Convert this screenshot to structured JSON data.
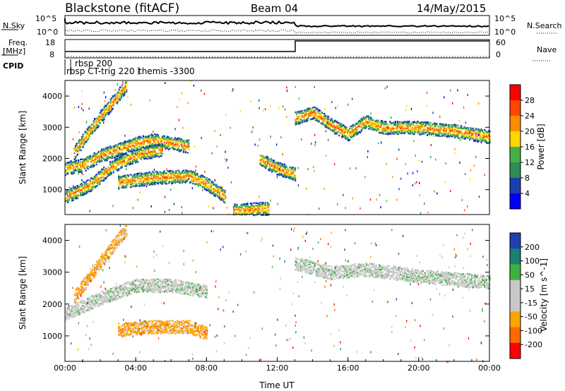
{
  "header": {
    "station": "Blackstone (fitACF)",
    "beam": "Beam 04",
    "date": "14/May/2015"
  },
  "strip": {
    "nsky_label": "N.Sky",
    "nsky_ticks": [
      "10^5",
      "10^0"
    ],
    "nsearch_label": "N.Search",
    "nsearch_ticks": [
      "10^5",
      "10^0"
    ],
    "freq_label_1": "Freq.",
    "freq_label_2": "[MHz]",
    "freq_ticks": [
      "18",
      "8"
    ],
    "nave_label": "Nave",
    "nave_ticks": [
      "60",
      "0"
    ],
    "cpid_label": "CPID",
    "cpid_entries": [
      "rbsp 200",
      "rbsp CT-trig 220",
      "themis -3300"
    ]
  },
  "colors": {
    "power": [
      "#0000ff",
      "#1a3fb0",
      "#2e8b57",
      "#44b045",
      "#ffd700",
      "#ff8c00",
      "#ff4500",
      "#ff0000"
    ],
    "velocity": [
      "#2040b0",
      "#1a8070",
      "#40b040",
      "#c8c8c8",
      "#c8c8c8",
      "#ffa500",
      "#ff6a00",
      "#ff0000"
    ]
  },
  "chart_data": [
    {
      "type": "heatmap",
      "panel": "power",
      "ylabel": "Slant Range [km]",
      "yticks": [
        "1000",
        "2000",
        "3000",
        "4000"
      ],
      "ylim": [
        200,
        4500
      ],
      "xlim": [
        0,
        24
      ],
      "colorbar_label": "Power [dB]",
      "colorbar_ticks": [
        "4",
        "8",
        "12",
        "16",
        "20",
        "24",
        "28"
      ],
      "features": [
        {
          "t": [
            0.0,
            1.0,
            2.0,
            3.0,
            4.0,
            5.0,
            6.0,
            7.0
          ],
          "r": [
            1700,
            1800,
            2100,
            2300,
            2500,
            2600,
            2500,
            2400
          ]
        },
        {
          "t": [
            0.0,
            0.5,
            1.5,
            2.5,
            3.5,
            4.5,
            5.5
          ],
          "r": [
            800,
            900,
            1200,
            1700,
            2000,
            2200,
            2300
          ]
        },
        {
          "t": [
            0.5,
            1.5,
            2.5,
            3.5
          ],
          "r": [
            2200,
            3000,
            3700,
            4400
          ]
        },
        {
          "t": [
            3.0,
            5.0,
            7.0,
            8.0,
            9.0
          ],
          "r": [
            1250,
            1400,
            1450,
            1200,
            800
          ]
        },
        {
          "t": [
            9.5,
            10.5,
            11.5
          ],
          "r": [
            350,
            380,
            420
          ]
        },
        {
          "t": [
            11.0,
            12.0,
            13.0
          ],
          "r": [
            2000,
            1700,
            1500
          ]
        },
        {
          "t": [
            13.0,
            14.0,
            15.0,
            16.0,
            17.0,
            18.0,
            20.0,
            22.0,
            24.0
          ],
          "r": [
            3300,
            3500,
            3100,
            2800,
            3200,
            3000,
            3000,
            2900,
            2700
          ]
        }
      ]
    },
    {
      "type": "heatmap",
      "panel": "velocity",
      "ylabel": "Slant Range [km]",
      "yticks": [
        "1000",
        "2000",
        "3000",
        "4000"
      ],
      "ylim": [
        200,
        4500
      ],
      "xlim": [
        0,
        24
      ],
      "xlabel": "Time UT",
      "xticks": [
        "00:00",
        "04:00",
        "08:00",
        "12:00",
        "16:00",
        "20:00",
        "00:00"
      ],
      "colorbar_label": "Velocity [m s^-1]",
      "colorbar_ticks": [
        "200",
        "100",
        "50",
        "15",
        "-15",
        "-50",
        "-100",
        "-200"
      ],
      "features": [
        {
          "t": [
            0.5,
            1.5,
            2.5,
            3.5
          ],
          "r": [
            2200,
            3000,
            3700,
            4400
          ]
        },
        {
          "t": [
            3.0,
            5.0,
            7.0,
            8.0
          ],
          "r": [
            1200,
            1300,
            1300,
            1100
          ]
        },
        {
          "t": [
            0.0,
            2.0,
            4.0,
            6.0,
            8.0
          ],
          "r": [
            1700,
            2200,
            2600,
            2600,
            2400
          ]
        },
        {
          "t": [
            13.0,
            15.0,
            17.0,
            20.0,
            24.0
          ],
          "r": [
            3300,
            3000,
            3100,
            2900,
            2700
          ]
        }
      ]
    }
  ]
}
